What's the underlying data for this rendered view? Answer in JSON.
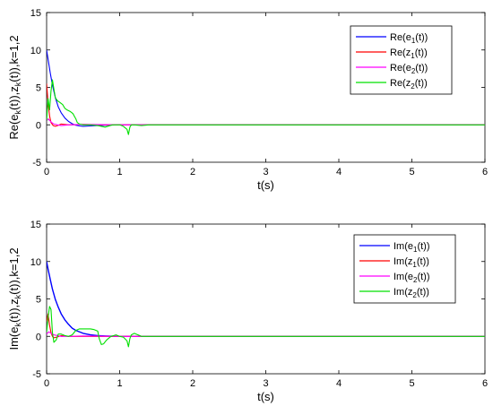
{
  "chart_data": [
    {
      "type": "line",
      "xlabel": "t(s)",
      "ylabel": "Re(e_k(t)),z_k(t)),k=1,2",
      "ylabel_parts": {
        "a": "Re(e",
        "sub1": "k",
        "b": "(t)),z",
        "sub2": "k",
        "c": "(t)),k=1,2"
      },
      "xlim": [
        0,
        6
      ],
      "ylim": [
        -5,
        15
      ],
      "xticks": [
        "0",
        "1",
        "2",
        "3",
        "4",
        "5",
        "6"
      ],
      "yticks": [
        "-5",
        "0",
        "5",
        "10",
        "15"
      ],
      "legend_position": "top-right",
      "grid": false,
      "series": [
        {
          "name": "Re(e1(t))",
          "name_parts": {
            "pre": "Re(e",
            "sub": "1",
            "post": "(t))"
          },
          "color": "#0000ff",
          "x": [
            0,
            0.02,
            0.05,
            0.08,
            0.12,
            0.16,
            0.2,
            0.25,
            0.3,
            0.35,
            0.4,
            0.45,
            0.5,
            0.6,
            0.7,
            0.8,
            1.0,
            1.5,
            2.0,
            6.0
          ],
          "y": [
            10,
            8.8,
            6.9,
            5.3,
            3.6,
            2.4,
            1.6,
            0.9,
            0.45,
            0.15,
            -0.05,
            -0.15,
            -0.2,
            -0.15,
            -0.1,
            -0.05,
            0,
            0,
            0,
            0
          ]
        },
        {
          "name": "Re(z1(t))",
          "name_parts": {
            "pre": "Re(z",
            "sub": "1",
            "post": "(t))"
          },
          "color": "#ff0000",
          "x": [
            0,
            0.02,
            0.04,
            0.06,
            0.09,
            0.12,
            0.15,
            0.2,
            0.3,
            0.5,
            0.8,
            1.0,
            6.0
          ],
          "y": [
            5.5,
            3.0,
            1.2,
            0.3,
            -0.1,
            -0.2,
            -0.1,
            0.1,
            0.0,
            0.05,
            0.0,
            0.0,
            0.0
          ]
        },
        {
          "name": "Re(e2(t))",
          "name_parts": {
            "pre": "Re(e",
            "sub": "2",
            "post": "(t))"
          },
          "color": "#ff00ff",
          "x": [
            0,
            0.02,
            0.04,
            0.07,
            0.1,
            0.15,
            0.2,
            0.3,
            0.5,
            1.0,
            6.0
          ],
          "y": [
            0.5,
            0.8,
            0.6,
            0.3,
            0.1,
            0.0,
            -0.1,
            0.0,
            0.05,
            0.0,
            0.0
          ]
        },
        {
          "name": "Re(z2(t))",
          "name_parts": {
            "pre": "Re(z",
            "sub": "2",
            "post": "(t))"
          },
          "color": "#00e000",
          "x": [
            0,
            0.02,
            0.04,
            0.06,
            0.08,
            0.1,
            0.12,
            0.15,
            0.18,
            0.22,
            0.25,
            0.28,
            0.32,
            0.36,
            0.4,
            0.42,
            0.45,
            0.5,
            0.6,
            0.7,
            0.8,
            0.9,
            1.0,
            1.05,
            1.1,
            1.12,
            1.14,
            1.16,
            1.2,
            1.3,
            1.4,
            1.6,
            2.0,
            6.0
          ],
          "y": [
            0.5,
            3.5,
            2.0,
            4.5,
            6.0,
            4.8,
            3.6,
            3.2,
            3.0,
            2.7,
            2.2,
            2.0,
            1.8,
            1.5,
            0.8,
            0.3,
            0.1,
            0.0,
            0.0,
            -0.1,
            -0.3,
            0.0,
            0.0,
            -0.2,
            -0.6,
            -1.3,
            -0.3,
            0.0,
            0.0,
            -0.1,
            0.0,
            0.0,
            0.0,
            0.0
          ]
        }
      ]
    },
    {
      "type": "line",
      "xlabel": "t(s)",
      "ylabel": "Im(e_k(t)),z_k(t)),k=1,2",
      "ylabel_parts": {
        "a": "Im(e",
        "sub1": "k",
        "b": "(t)),z",
        "sub2": "k",
        "c": "(t)),k=1,2"
      },
      "xlim": [
        0,
        6
      ],
      "ylim": [
        -5,
        15
      ],
      "xticks": [
        "0",
        "1",
        "2",
        "3",
        "4",
        "5",
        "6"
      ],
      "yticks": [
        "-5",
        "0",
        "5",
        "10",
        "15"
      ],
      "legend_position": "top-right",
      "grid": false,
      "series": [
        {
          "name": "Im(e1(t))",
          "name_parts": {
            "pre": "Im(e",
            "sub": "1",
            "post": "(t))"
          },
          "color": "#0000ff",
          "x": [
            0,
            0.02,
            0.05,
            0.08,
            0.12,
            0.16,
            0.2,
            0.25,
            0.3,
            0.35,
            0.4,
            0.5,
            0.6,
            0.7,
            0.8,
            0.9,
            1.0,
            1.5,
            6.0
          ],
          "y": [
            10,
            9.0,
            7.6,
            6.3,
            4.9,
            3.9,
            3.0,
            2.2,
            1.6,
            1.1,
            0.8,
            0.4,
            0.2,
            0.1,
            0.05,
            0.02,
            0.0,
            0.0,
            0.0
          ]
        },
        {
          "name": "Im(z1(t))",
          "name_parts": {
            "pre": "Im(z",
            "sub": "1",
            "post": "(t))"
          },
          "color": "#ff0000",
          "x": [
            0,
            0.02,
            0.04,
            0.06,
            0.08,
            0.1,
            0.14,
            0.2,
            0.3,
            0.5,
            1.0,
            6.0
          ],
          "y": [
            2.0,
            3.0,
            1.5,
            0.5,
            0.0,
            -0.2,
            -0.1,
            0.1,
            0.0,
            0.0,
            0.0,
            0.0
          ]
        },
        {
          "name": "Im(e2(t))",
          "name_parts": {
            "pre": "Im(e",
            "sub": "2",
            "post": "(t))"
          },
          "color": "#ff00ff",
          "x": [
            0,
            0.03,
            0.06,
            0.1,
            0.15,
            0.2,
            0.3,
            0.5,
            1.0,
            6.0
          ],
          "y": [
            0.3,
            0.6,
            0.4,
            0.2,
            0.1,
            0.0,
            0.0,
            0.05,
            0.0,
            0.0
          ]
        },
        {
          "name": "Im(z2(t))",
          "name_parts": {
            "pre": "Im(z",
            "sub": "2",
            "post": "(t))"
          },
          "color": "#00e000",
          "x": [
            0,
            0.02,
            0.04,
            0.06,
            0.08,
            0.1,
            0.13,
            0.16,
            0.2,
            0.25,
            0.3,
            0.35,
            0.4,
            0.45,
            0.5,
            0.55,
            0.6,
            0.65,
            0.7,
            0.72,
            0.75,
            0.78,
            0.82,
            0.88,
            0.95,
            1.0,
            1.05,
            1.1,
            1.12,
            1.14,
            1.16,
            1.2,
            1.3,
            1.5,
            2.0,
            6.0
          ],
          "y": [
            0.5,
            2.5,
            4.0,
            3.6,
            0.5,
            -0.8,
            -0.5,
            0.3,
            0.3,
            0.1,
            0.0,
            0.2,
            0.8,
            1.0,
            1.0,
            1.0,
            1.0,
            0.9,
            0.7,
            -0.3,
            -1.1,
            -1.0,
            -0.5,
            0.0,
            0.2,
            0.0,
            -0.1,
            -0.6,
            -1.4,
            -0.3,
            0.2,
            0.4,
            0.0,
            0.0,
            0.0,
            0.0
          ]
        }
      ]
    }
  ]
}
